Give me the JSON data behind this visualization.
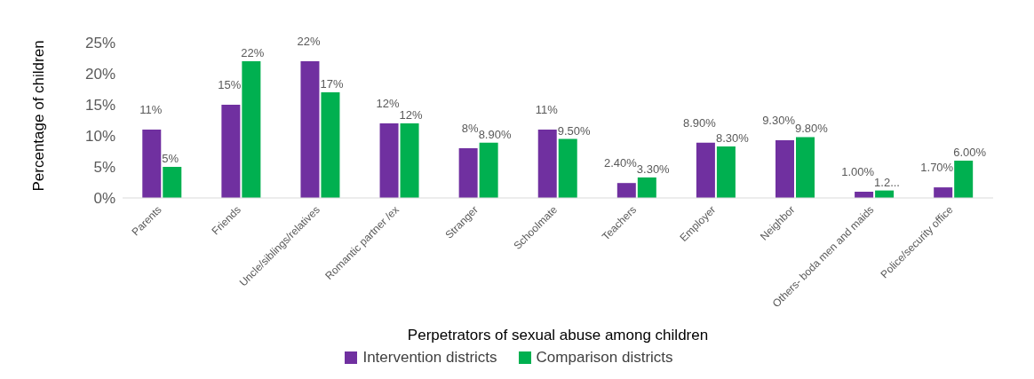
{
  "chart_data": {
    "type": "bar",
    "xlabel": "Perpetrators of sexual abuse among children",
    "ylabel": "Percentage of children",
    "categories": [
      "Parents",
      "Friends",
      "Uncle/siblings/relatives",
      "Romantic partner /ex",
      "Stranger",
      "Schoolmate",
      "Teachers",
      "Employer",
      "Neighbor",
      "Others- boda men and maids",
      "Police/security office"
    ],
    "series": [
      {
        "name": "Intervention districts",
        "color": "#7030a0",
        "values": [
          11,
          15,
          22,
          12,
          8,
          11,
          2.4,
          8.9,
          9.3,
          1.0,
          1.7
        ],
        "value_labels": [
          "11%",
          "15%",
          "22%",
          "12%",
          "8%",
          "11%",
          "2.40%",
          "8.90%",
          "9.30%",
          "1.00%",
          "1.70%"
        ]
      },
      {
        "name": "Comparison districts",
        "color": "#00b050",
        "values": [
          5,
          22,
          17,
          12,
          8.9,
          9.5,
          3.3,
          8.3,
          9.8,
          1.2,
          6.0
        ],
        "value_labels": [
          "5%",
          "22%",
          "17%",
          "12%",
          "8.90%",
          "9.50%",
          "3.30%",
          "8.30%",
          "9.80%",
          "1.2...",
          "6.00%"
        ]
      }
    ],
    "ylim": [
      0,
      25
    ],
    "yticks": [
      {
        "value": 0,
        "label": "0%"
      },
      {
        "value": 5,
        "label": "5%"
      },
      {
        "value": 10,
        "label": "10%"
      },
      {
        "value": 15,
        "label": "15%"
      },
      {
        "value": 20,
        "label": "20%"
      },
      {
        "value": 25,
        "label": "25%"
      }
    ],
    "grid": false,
    "legend": "bottom"
  }
}
